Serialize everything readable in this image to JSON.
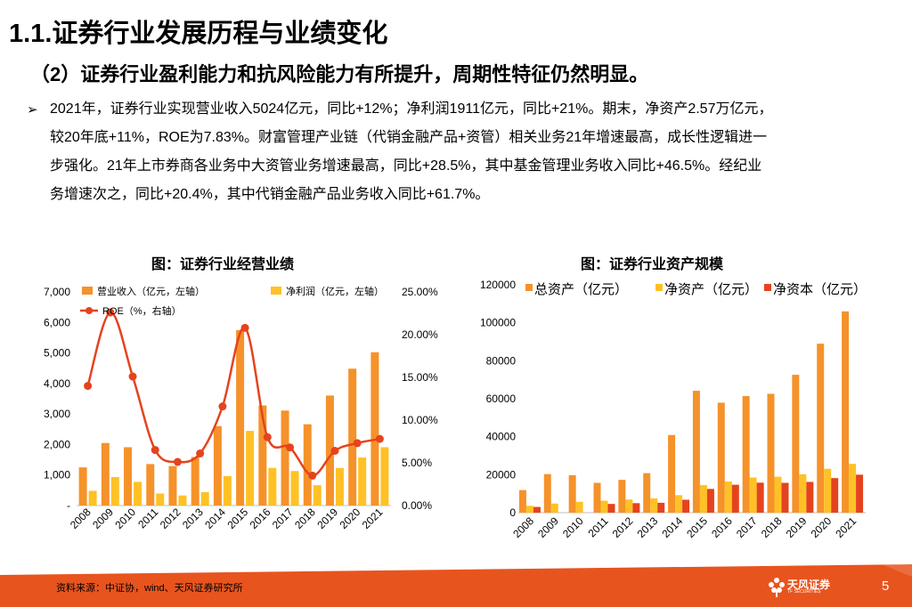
{
  "header": {
    "title": "1.1.证券行业发展历程与业绩变化",
    "subtitle": "（2）证券行业盈利能力和抗风险能力有所提升，周期性特征仍然明显。",
    "bullet": "➢",
    "paragraph_lines": [
      "2021年，证券行业实现营业收入5024亿元，同比+12%；净利润1911亿元，同比+21%。期末，净资产2.57万亿元，",
      "较20年底+11%，ROE为7.83%。财富管理产业链（代销金融产品+资管）相关业务21年增速最高，成长性逻辑进一",
      "步强化。21年上市券商各业务中大资管业务增速最高，同比+28.5%，其中基金管理业务收入同比+46.5%。经纪业",
      "务增速次之，同比+20.4%，其中代销金融产品业务收入同比+61.7%。"
    ]
  },
  "colors": {
    "orange": "#F5922A",
    "yellow": "#FFC125",
    "red": "#E5431E",
    "footer": "#E8541E"
  },
  "chart_data": [
    {
      "type": "bar",
      "title": "图：证券行业经营业绩",
      "categories": [
        "2008",
        "2009",
        "2010",
        "2011",
        "2012",
        "2013",
        "2014",
        "2015",
        "2016",
        "2017",
        "2018",
        "2019",
        "2020",
        "2021"
      ],
      "series": [
        {
          "name": "营业收入（亿元，左轴）",
          "axis": "left",
          "kind": "bar",
          "values": [
            1251,
            2050,
            1911,
            1359,
            1295,
            1592,
            2603,
            5752,
            3280,
            3113,
            2663,
            3605,
            4485,
            5024
          ]
        },
        {
          "name": "净利润（亿元，左轴）",
          "axis": "left",
          "kind": "bar",
          "values": [
            482,
            933,
            776,
            394,
            330,
            440,
            966,
            2447,
            1234,
            1130,
            666,
            1231,
            1575,
            1911
          ]
        },
        {
          "name": "ROE（%，右轴）",
          "axis": "right",
          "kind": "line",
          "values": [
            14.0,
            22.6,
            15.1,
            6.5,
            5.1,
            6.1,
            11.6,
            20.8,
            8.0,
            6.8,
            3.5,
            6.4,
            7.3,
            7.8
          ]
        }
      ],
      "left_ticks": [
        "-",
        "1,000",
        "2,000",
        "3,000",
        "4,000",
        "5,000",
        "6,000",
        "7,000"
      ],
      "right_ticks": [
        "0.00%",
        "5.00%",
        "10.00%",
        "15.00%",
        "20.00%",
        "25.00%"
      ],
      "ylim_left": [
        0,
        7000
      ],
      "ylim_right": [
        0,
        25
      ],
      "legend": "top"
    },
    {
      "type": "bar",
      "title": "图：证券行业资产规模",
      "categories": [
        "2008",
        "2009",
        "2010",
        "2011",
        "2012",
        "2013",
        "2014",
        "2015",
        "2016",
        "2017",
        "2018",
        "2019",
        "2020",
        "2021"
      ],
      "series": [
        {
          "name": "总资产（亿元）",
          "values": [
            11900,
            20300,
            19700,
            15700,
            17300,
            20800,
            40900,
            64200,
            57900,
            61400,
            62600,
            72600,
            89000,
            106000
          ]
        },
        {
          "name": "净资产（亿元）",
          "values": [
            3600,
            4800,
            5700,
            6300,
            6900,
            7500,
            9200,
            14500,
            16400,
            18500,
            18900,
            20200,
            23100,
            25700
          ]
        },
        {
          "name": "净资本（亿元）",
          "values": [
            3000,
            0,
            0,
            4600,
            5000,
            5200,
            6800,
            12500,
            14700,
            15800,
            15700,
            16200,
            18200,
            20000
          ]
        }
      ],
      "ticks": [
        "0",
        "20000",
        "40000",
        "60000",
        "80000",
        "100000",
        "120000"
      ],
      "ylim": [
        0,
        120000
      ],
      "legend": "top"
    }
  ],
  "footer": {
    "source": "资料来源：中证协，wind、天风证券研究所",
    "logo_text": "天风证券",
    "logo_sub": "TF SECURITIES",
    "page_number": "5"
  }
}
